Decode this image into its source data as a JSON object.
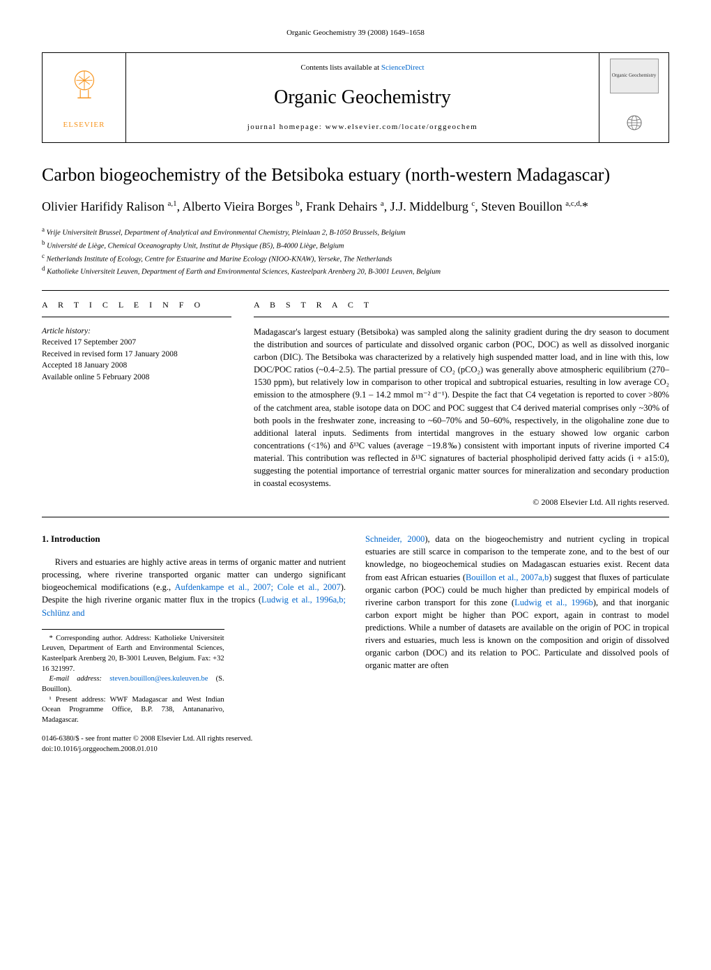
{
  "running_header": "Organic Geochemistry 39 (2008) 1649–1658",
  "journal_box": {
    "elsevier_label": "ELSEVIER",
    "contents_prefix": "Contents lists available at ",
    "contents_link": "ScienceDirect",
    "journal_title": "Organic Geochemistry",
    "homepage_line": "journal homepage: www.elsevier.com/locate/orggeochem",
    "cover_text": "Organic Geochemistry"
  },
  "article": {
    "title": "Carbon biogeochemistry of the Betsiboka estuary (north-western Madagascar)",
    "authors_html": "Olivier Harifidy Ralison <sup>a,1</sup>, Alberto Vieira Borges <sup>b</sup>, Frank Dehairs <sup>a</sup>, J.J. Middelburg <sup>c</sup>, Steven Bouillon <sup>a,c,d,</sup>*",
    "affiliations": [
      {
        "sup": "a",
        "text": "Vrije Universiteit Brussel, Department of Analytical and Environmental Chemistry, Pleinlaan 2, B-1050 Brussels, Belgium"
      },
      {
        "sup": "b",
        "text": "Université de Liège, Chemical Oceanography Unit, Institut de Physique (B5), B-4000 Liège, Belgium"
      },
      {
        "sup": "c",
        "text": "Netherlands Institute of Ecology, Centre for Estuarine and Marine Ecology (NIOO-KNAW), Yerseke, The Netherlands"
      },
      {
        "sup": "d",
        "text": "Katholieke Universiteit Leuven, Department of Earth and Environmental Sciences, Kasteelpark Arenberg 20, B-3001 Leuven, Belgium"
      }
    ]
  },
  "info_section": {
    "heading": "A R T I C L E   I N F O",
    "history_label": "Article history:",
    "lines": [
      "Received 17 September 2007",
      "Received in revised form 17 January 2008",
      "Accepted 18 January 2008",
      "Available online 5 February 2008"
    ]
  },
  "abstract_section": {
    "heading": "A B S T R A C T",
    "text": "Madagascar's largest estuary (Betsiboka) was sampled along the salinity gradient during the dry season to document the distribution and sources of particulate and dissolved organic carbon (POC, DOC) as well as dissolved inorganic carbon (DIC). The Betsiboka was characterized by a relatively high suspended matter load, and in line with this, low DOC/POC ratios (~0.4–2.5). The partial pressure of CO₂ (pCO₂) was generally above atmospheric equilibrium (270–1530 ppm), but relatively low in comparison to other tropical and subtropical estuaries, resulting in low average CO₂ emission to the atmosphere (9.1 – 14.2 mmol m⁻² d⁻¹). Despite the fact that C4 vegetation is reported to cover >80% of the catchment area, stable isotope data on DOC and POC suggest that C4 derived material comprises only ~30% of both pools in the freshwater zone, increasing to ~60–70% and 50–60%, respectively, in the oligohaline zone due to additional lateral inputs. Sediments from intertidal mangroves in the estuary showed low organic carbon concentrations (<1%) and δ¹³C values (average −19.8‰) consistent with important inputs of riverine imported C4 material. This contribution was reflected in δ¹³C signatures of bacterial phospholipid derived fatty acids (i + a15:0), suggesting the potential importance of terrestrial organic matter sources for mineralization and secondary production in coastal ecosystems.",
    "copyright": "© 2008 Elsevier Ltd. All rights reserved."
  },
  "body": {
    "intro_heading": "1. Introduction",
    "col_left": "Rivers and estuaries are highly active areas in terms of organic matter and nutrient processing, where riverine transported organic matter can undergo significant biogeochemical modifications (e.g., Aufdenkampe et al., 2007; Cole et al., 2007). Despite the high riverine organic matter flux in the tropics (Ludwig et al., 1996a,b; Schlünz and",
    "col_right": "Schneider, 2000), data on the biogeochemistry and nutrient cycling in tropical estuaries are still scarce in comparison to the temperate zone, and to the best of our knowledge, no biogeochemical studies on Madagascan estuaries exist. Recent data from east African estuaries (Bouillon et al., 2007a,b) suggest that fluxes of particulate organic carbon (POC) could be much higher than predicted by empirical models of riverine carbon transport for this zone (Ludwig et al., 1996b), and that inorganic carbon export might be higher than POC export, again in contrast to model predictions. While a number of datasets are available on the origin of POC in tropical rivers and estuaries, much less is known on the composition and origin of dissolved organic carbon (DOC) and its relation to POC. Particulate and dissolved pools of organic matter are often"
  },
  "footnotes": {
    "corresponding": "* Corresponding author. Address: Katholieke Universiteit Leuven, Department of Earth and Environmental Sciences, Kasteelpark Arenberg 20, B-3001 Leuven, Belgium. Fax: +32 16 321997.",
    "email_label": "E-mail address:",
    "email": "steven.bouillon@ees.kuleuven.be",
    "email_suffix": "(S. Bouillon).",
    "present": "¹ Present address: WWF Madagascar and West Indian Ocean Programme Office, B.P. 738, Antananarivo, Madagascar."
  },
  "doi_block": {
    "line1": "0146-6380/$ - see front matter © 2008 Elsevier Ltd. All rights reserved.",
    "line2": "doi:10.1016/j.orggeochem.2008.01.010"
  },
  "colors": {
    "link": "#0066cc",
    "elsevier_orange": "#f7941d",
    "text": "#000000",
    "bg": "#ffffff"
  },
  "typography": {
    "body_font": "Times New Roman",
    "title_fontsize_pt": 20,
    "authors_fontsize_pt": 14,
    "abstract_fontsize_pt": 9.5,
    "journal_title_fontsize_pt": 21
  }
}
